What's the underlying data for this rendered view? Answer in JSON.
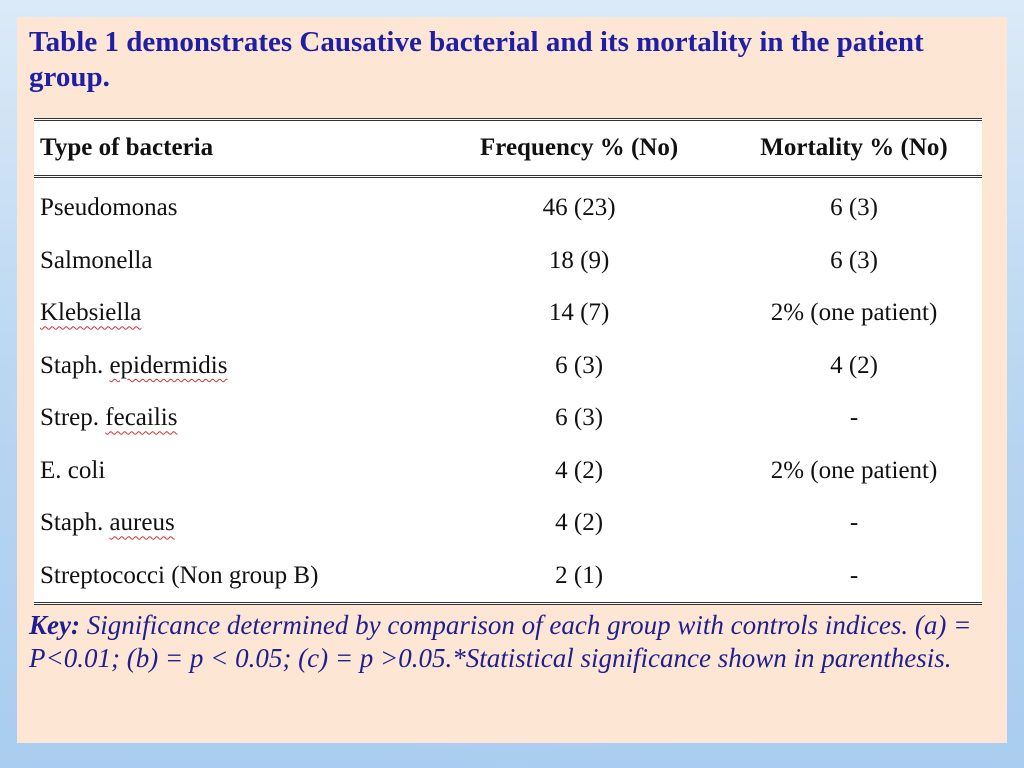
{
  "slide": {
    "title": "Table 1 demonstrates Causative bacterial and its mortality in the patient group."
  },
  "table": {
    "headers": [
      "Type of bacteria",
      "Frequency  % (No)",
      "Mortality  % (No)"
    ],
    "rows": [
      [
        "Pseudomonas",
        "46 (23)",
        "6 (3)"
      ],
      [
        "Salmonella",
        "18 (9)",
        "6 (3)"
      ],
      [
        "Klebsiella",
        "14 (7)",
        "2% (one patient)"
      ],
      [
        "Staph. epidermidis",
        "6 (3)",
        "4 (2)"
      ],
      [
        "Strep. fecailis",
        "6 (3)",
        "-"
      ],
      [
        "E. coli",
        "4 (2)",
        "2% (one patient)"
      ],
      [
        "Staph. aureus",
        "4 (2)",
        "-"
      ],
      [
        "Streptococci  (Non group B)",
        "2 (1)",
        "-"
      ]
    ]
  },
  "key": {
    "label": "Key:",
    "text": " Significance determined by comparison of each group with controls indices. (a) =  P<0.01; (b) = p < 0.05; (c) = p >0.05.*Statistical significance shown in parenthesis."
  },
  "colors": {
    "title": "#1f1fa5",
    "panel": "#fde6d4",
    "key_text": "#1f1f8f"
  }
}
